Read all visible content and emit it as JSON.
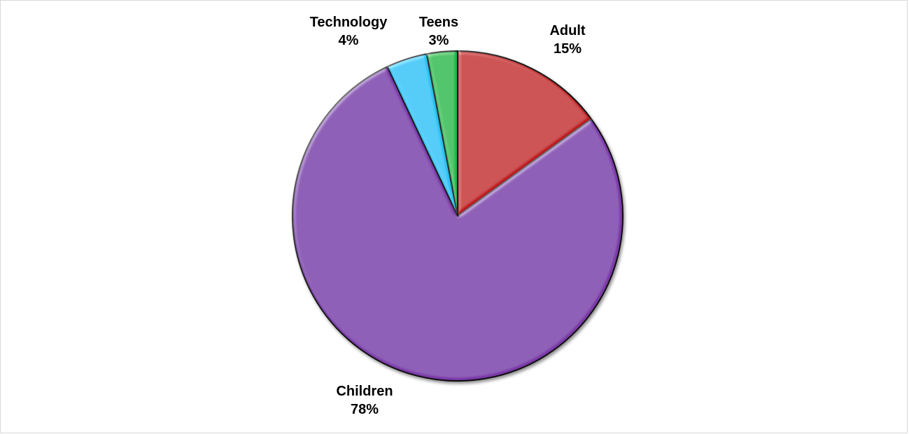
{
  "chart_data": {
    "type": "pie",
    "categories": [
      "Adult",
      "Children",
      "Technology",
      "Teens"
    ],
    "values": [
      15,
      78,
      4,
      3
    ],
    "labels": [
      "15%",
      "78%",
      "4%",
      "3%"
    ],
    "colors": [
      "#c0191c",
      "#7a37a8",
      "#22c1f0",
      "#12b84c"
    ],
    "start_angle_deg": 0,
    "direction": "clockwise",
    "legend": "none",
    "data_labels": "category-and-percent-outside"
  }
}
